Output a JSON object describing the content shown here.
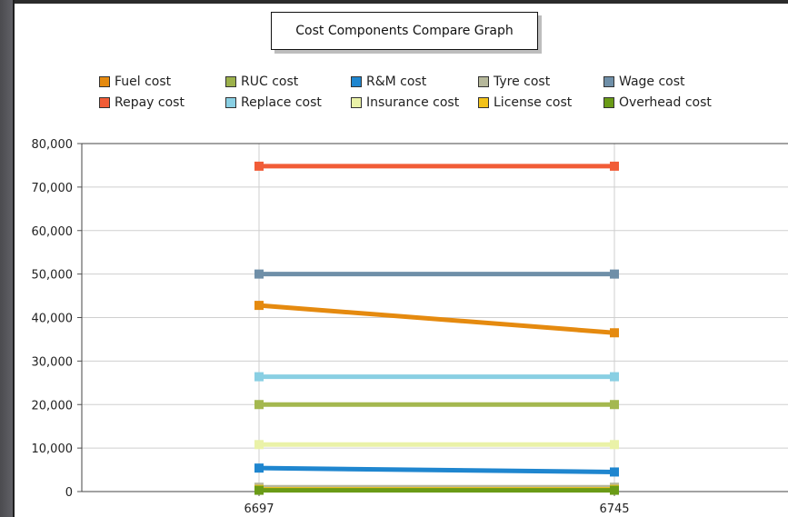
{
  "chart_data": {
    "type": "line",
    "title": "Cost Components Compare Graph",
    "categories": [
      "6697",
      "6745"
    ],
    "ylim": [
      0,
      80000
    ],
    "yticks": [
      "0",
      "10,000",
      "20,000",
      "30,000",
      "40,000",
      "50,000",
      "60,000",
      "70,000",
      "80,000"
    ],
    "grid": true,
    "legend_position": "top",
    "series": [
      {
        "name": "Fuel cost",
        "color": "#e58a0f",
        "values": [
          42800,
          36500
        ]
      },
      {
        "name": "RUC cost",
        "color": "#9cb14b",
        "values": [
          900,
          900
        ]
      },
      {
        "name": "R&M cost",
        "color": "#1f86cf",
        "values": [
          5400,
          4500
        ]
      },
      {
        "name": "Tyre cost",
        "color": "#b6b89b",
        "values": [
          1000,
          1000
        ]
      },
      {
        "name": "Wage cost",
        "color": "#6f8fa8",
        "values": [
          50000,
          50000
        ]
      },
      {
        "name": "Repay cost",
        "color": "#f15c37",
        "values": [
          74800,
          74800
        ]
      },
      {
        "name": "Replace cost",
        "color": "#89cfe3",
        "values": [
          26400,
          26400
        ]
      },
      {
        "name": "Insurance cost",
        "color": "#eaf2a8",
        "values": [
          10800,
          10800
        ]
      },
      {
        "name": "License cost",
        "color": "#f2c21a",
        "values": [
          500,
          500
        ]
      },
      {
        "name": "Overhead cost",
        "color": "#6a9b17",
        "values": [
          300,
          300
        ]
      },
      {
        "name": "RUC cost",
        "color": "#a4b84f",
        "values": [
          20000,
          20000
        ]
      }
    ]
  }
}
